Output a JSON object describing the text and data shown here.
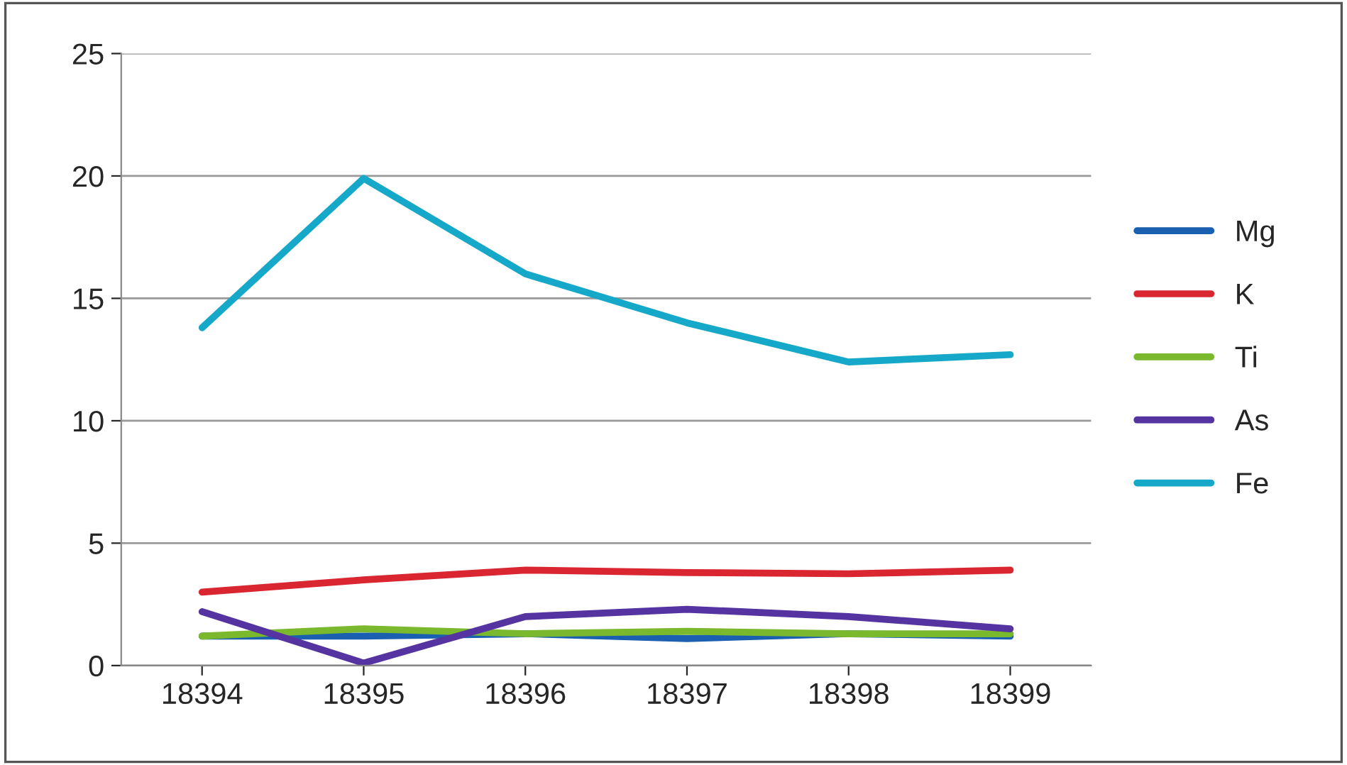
{
  "chart_data": {
    "type": "line",
    "categories": [
      "18394",
      "18395",
      "18396",
      "18397",
      "18398",
      "18399"
    ],
    "series": [
      {
        "name": "Mg",
        "color": "#1a5fb0",
        "values": [
          1.2,
          1.2,
          1.3,
          1.1,
          1.3,
          1.2
        ]
      },
      {
        "name": "K",
        "color": "#d92630",
        "values": [
          3.0,
          3.5,
          3.9,
          3.8,
          3.75,
          3.9
        ]
      },
      {
        "name": "Ti",
        "color": "#7ab82e",
        "values": [
          1.2,
          1.5,
          1.3,
          1.4,
          1.3,
          1.3
        ]
      },
      {
        "name": "As",
        "color": "#5533a0",
        "values": [
          2.2,
          0.1,
          2.0,
          2.3,
          2.0,
          1.5
        ]
      },
      {
        "name": "Fe",
        "color": "#16a8c8",
        "values": [
          13.8,
          19.9,
          16.0,
          14.0,
          12.4,
          12.7
        ]
      }
    ],
    "ylim": [
      0,
      25
    ],
    "yticks": [
      0,
      5,
      10,
      15,
      20,
      25
    ],
    "grid": "y",
    "legend": "right",
    "marker": "none",
    "line_style": "solid"
  }
}
